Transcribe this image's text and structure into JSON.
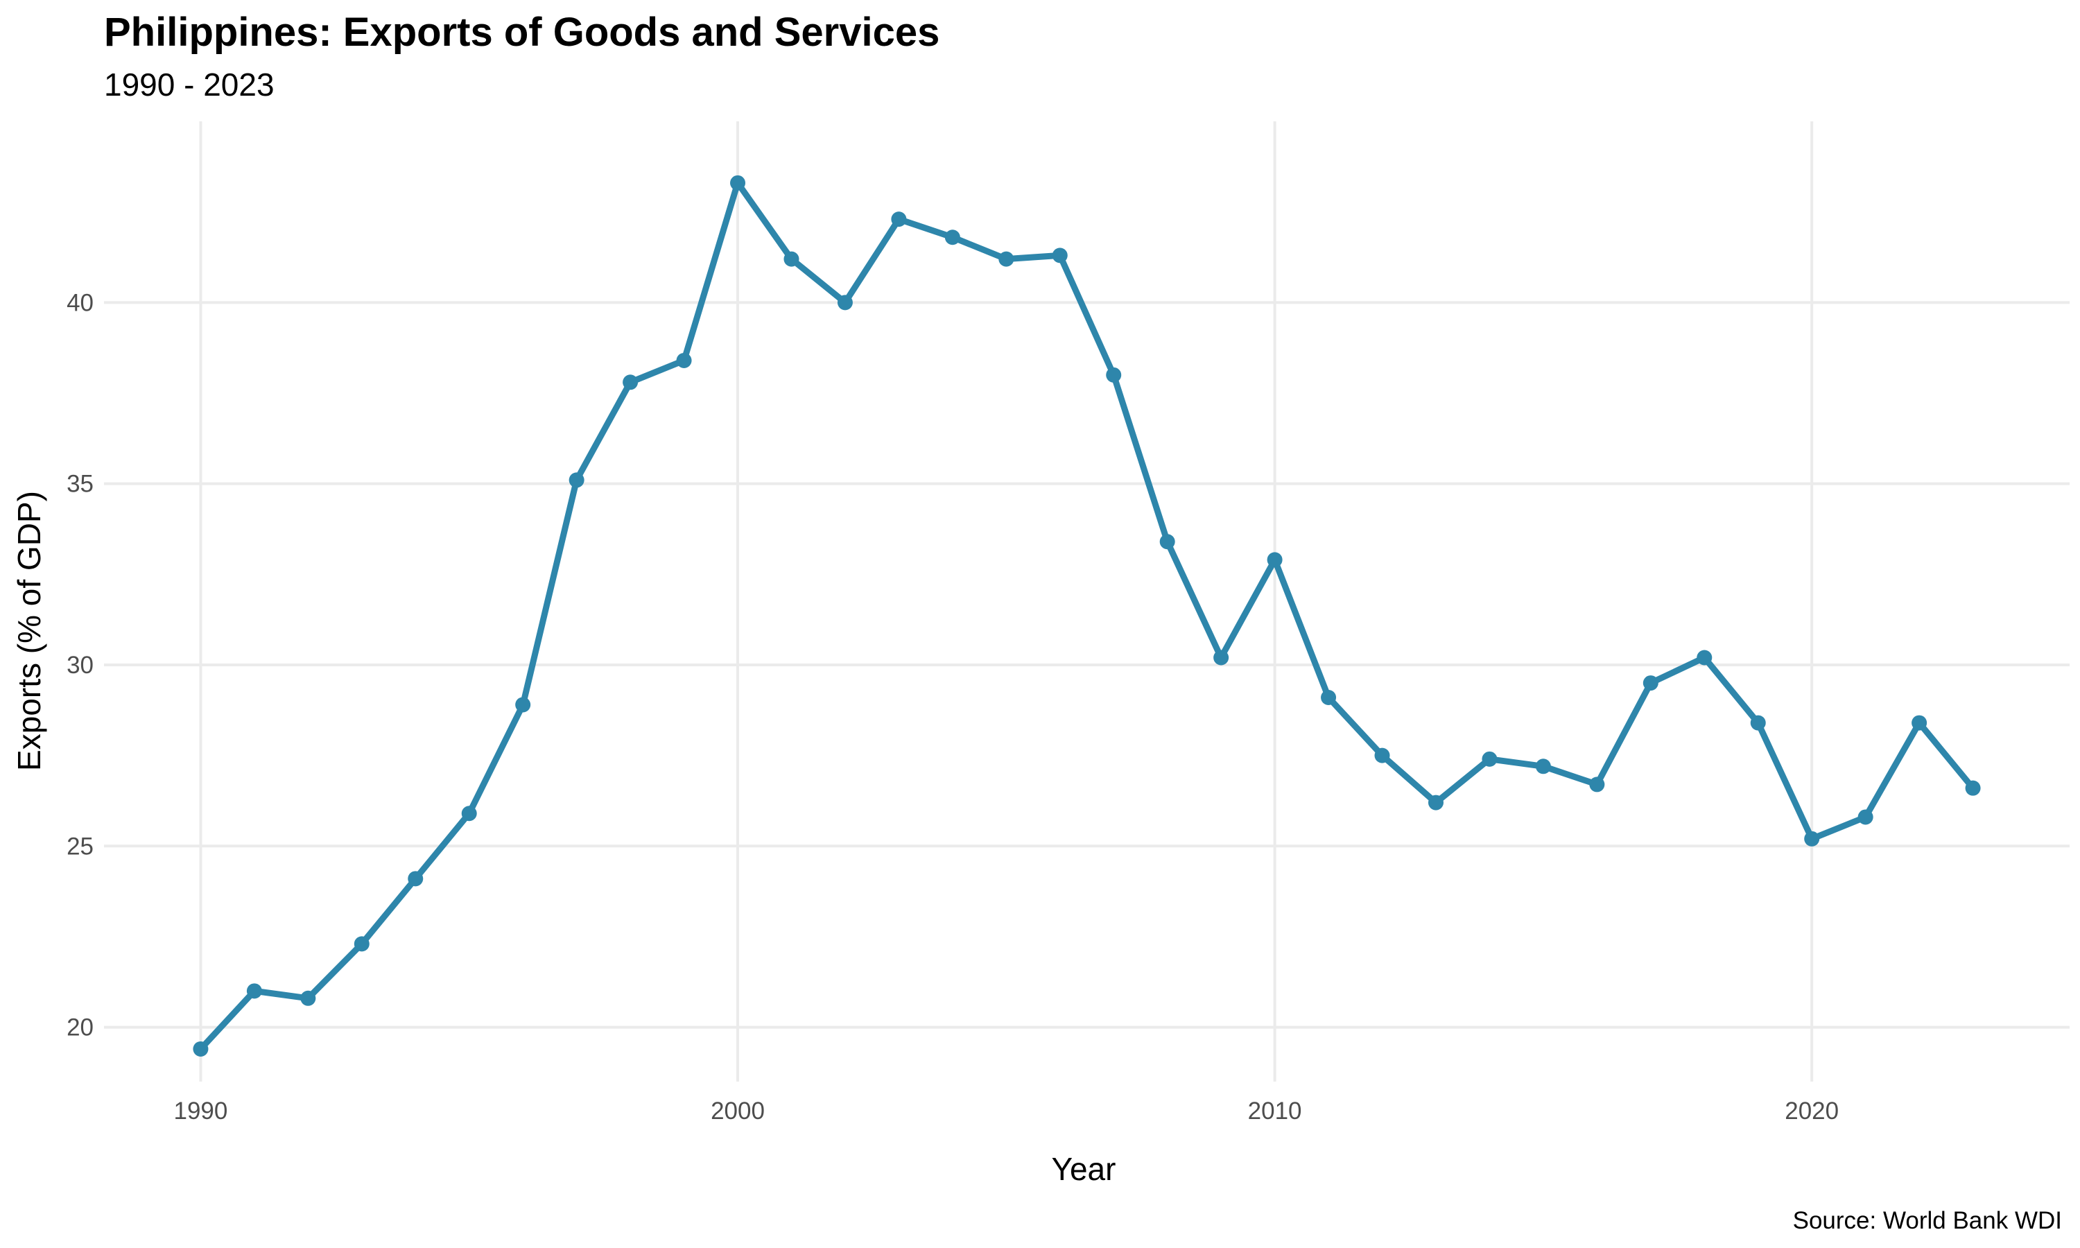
{
  "chart_data": {
    "type": "line",
    "title": "Philippines: Exports of Goods and Services",
    "subtitle": "1990 - 2023",
    "xlabel": "Year",
    "ylabel": "Exports (% of GDP)",
    "caption": "Source: World Bank WDI",
    "xlim": [
      1988.2,
      2024.8
    ],
    "ylim": [
      18.5,
      45.0
    ],
    "xticks": [
      1990,
      2000,
      2010,
      2020
    ],
    "yticks": [
      20,
      25,
      30,
      35,
      40
    ],
    "grid": true,
    "legend": "none",
    "color": "#2e86ab",
    "x": [
      1990,
      1991,
      1992,
      1993,
      1994,
      1995,
      1996,
      1997,
      1998,
      1999,
      2000,
      2001,
      2002,
      2003,
      2004,
      2005,
      2006,
      2007,
      2008,
      2009,
      2010,
      2011,
      2012,
      2013,
      2014,
      2015,
      2016,
      2017,
      2018,
      2019,
      2020,
      2021,
      2022,
      2023
    ],
    "series": [
      {
        "values": [
          19.4,
          21.0,
          20.8,
          22.3,
          24.1,
          25.9,
          28.9,
          35.1,
          37.8,
          38.4,
          43.3,
          41.2,
          40.0,
          42.3,
          41.8,
          41.2,
          41.3,
          38.0,
          33.4,
          30.2,
          32.9,
          29.1,
          27.5,
          26.2,
          27.4,
          27.2,
          26.7,
          29.5,
          30.2,
          28.4,
          25.2,
          25.8,
          28.4,
          26.6
        ]
      }
    ]
  }
}
